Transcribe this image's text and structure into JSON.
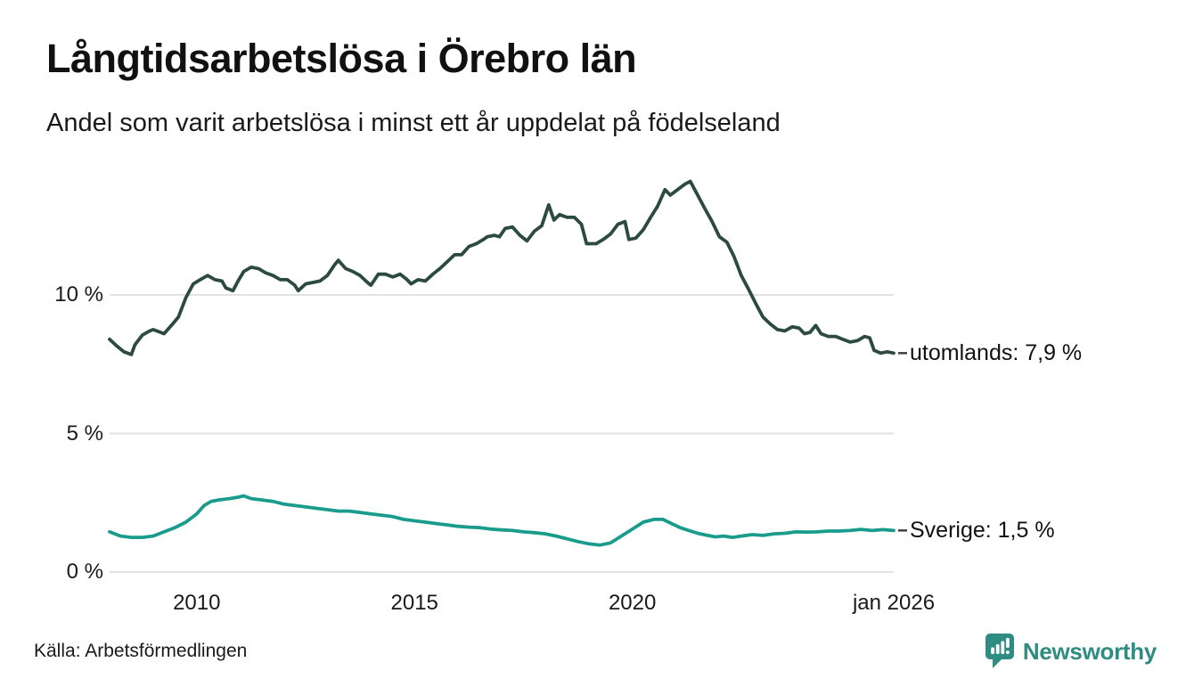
{
  "header": {
    "title": "Långtidsarbetslösa i Örebro län",
    "subtitle": "Andel som varit arbetslösa i minst ett år uppdelat på födelseland"
  },
  "footer": {
    "source": "Källa: Arbetsförmedlingen",
    "brand": "Newsworthy",
    "brand_icon": "newsworthy-speech-bubble-bar-chart-icon",
    "brand_color": "#2e8c82"
  },
  "chart_data": {
    "type": "line",
    "title": "Långtidsarbetslösa i Örebro län",
    "subtitle": "Andel som varit arbetslösa i minst ett år uppdelat på födelseland",
    "unit": "%",
    "x_range": [
      2008,
      2026
    ],
    "y_range": [
      0,
      15.2
    ],
    "grid": "horizontal-only",
    "legend_position": "end-of-line-labels",
    "yticks": [
      {
        "value": 0,
        "label": "0 %"
      },
      {
        "value": 5,
        "label": "5 %"
      },
      {
        "value": 10,
        "label": "10 %"
      }
    ],
    "xticks": [
      {
        "value": 2010,
        "label": "2010"
      },
      {
        "value": 2015,
        "label": "2015"
      },
      {
        "value": 2020,
        "label": "2020"
      },
      {
        "value": 2026,
        "label": "jan 2026"
      }
    ],
    "series": [
      {
        "name": "utomlands",
        "label": "utomlands: 7,9 %",
        "last_value_label": "7,9 %",
        "last_value": 7.9,
        "color": "#2c4a41",
        "points": [
          [
            2008.0,
            8.4
          ],
          [
            2008.17,
            8.15
          ],
          [
            2008.33,
            7.95
          ],
          [
            2008.5,
            7.85
          ],
          [
            2008.58,
            8.2
          ],
          [
            2008.75,
            8.55
          ],
          [
            2008.92,
            8.7
          ],
          [
            2009.0,
            8.75
          ],
          [
            2009.17,
            8.65
          ],
          [
            2009.25,
            8.6
          ],
          [
            2009.42,
            8.9
          ],
          [
            2009.58,
            9.2
          ],
          [
            2009.75,
            9.9
          ],
          [
            2009.92,
            10.4
          ],
          [
            2010.08,
            10.55
          ],
          [
            2010.25,
            10.7
          ],
          [
            2010.42,
            10.55
          ],
          [
            2010.58,
            10.5
          ],
          [
            2010.67,
            10.25
          ],
          [
            2010.83,
            10.15
          ],
          [
            2010.95,
            10.5
          ],
          [
            2011.08,
            10.85
          ],
          [
            2011.25,
            11.0
          ],
          [
            2011.42,
            10.95
          ],
          [
            2011.58,
            10.8
          ],
          [
            2011.75,
            10.7
          ],
          [
            2011.92,
            10.55
          ],
          [
            2012.08,
            10.55
          ],
          [
            2012.25,
            10.35
          ],
          [
            2012.33,
            10.15
          ],
          [
            2012.5,
            10.4
          ],
          [
            2012.67,
            10.45
          ],
          [
            2012.83,
            10.5
          ],
          [
            2013.0,
            10.7
          ],
          [
            2013.17,
            11.1
          ],
          [
            2013.25,
            11.25
          ],
          [
            2013.42,
            10.95
          ],
          [
            2013.58,
            10.85
          ],
          [
            2013.75,
            10.7
          ],
          [
            2013.92,
            10.45
          ],
          [
            2014.0,
            10.35
          ],
          [
            2014.17,
            10.75
          ],
          [
            2014.33,
            10.75
          ],
          [
            2014.5,
            10.65
          ],
          [
            2014.67,
            10.75
          ],
          [
            2014.83,
            10.55
          ],
          [
            2014.92,
            10.4
          ],
          [
            2015.08,
            10.55
          ],
          [
            2015.25,
            10.5
          ],
          [
            2015.42,
            10.75
          ],
          [
            2015.58,
            10.95
          ],
          [
            2015.75,
            11.2
          ],
          [
            2015.92,
            11.45
          ],
          [
            2016.08,
            11.45
          ],
          [
            2016.25,
            11.75
          ],
          [
            2016.42,
            11.85
          ],
          [
            2016.58,
            12.0
          ],
          [
            2016.67,
            12.1
          ],
          [
            2016.83,
            12.15
          ],
          [
            2016.95,
            12.1
          ],
          [
            2017.08,
            12.4
          ],
          [
            2017.25,
            12.45
          ],
          [
            2017.42,
            12.15
          ],
          [
            2017.58,
            11.95
          ],
          [
            2017.75,
            12.3
          ],
          [
            2017.92,
            12.5
          ],
          [
            2018.08,
            13.25
          ],
          [
            2018.2,
            12.7
          ],
          [
            2018.33,
            12.9
          ],
          [
            2018.5,
            12.8
          ],
          [
            2018.67,
            12.8
          ],
          [
            2018.83,
            12.55
          ],
          [
            2018.95,
            11.85
          ],
          [
            2019.17,
            11.85
          ],
          [
            2019.33,
            12.0
          ],
          [
            2019.5,
            12.2
          ],
          [
            2019.67,
            12.55
          ],
          [
            2019.83,
            12.65
          ],
          [
            2019.92,
            12.0
          ],
          [
            2020.08,
            12.05
          ],
          [
            2020.25,
            12.35
          ],
          [
            2020.42,
            12.8
          ],
          [
            2020.58,
            13.2
          ],
          [
            2020.75,
            13.8
          ],
          [
            2020.87,
            13.6
          ],
          [
            2021.04,
            13.8
          ],
          [
            2021.21,
            14.0
          ],
          [
            2021.33,
            14.1
          ],
          [
            2021.5,
            13.6
          ],
          [
            2021.67,
            13.1
          ],
          [
            2021.83,
            12.65
          ],
          [
            2022.0,
            12.1
          ],
          [
            2022.17,
            11.9
          ],
          [
            2022.33,
            11.4
          ],
          [
            2022.5,
            10.7
          ],
          [
            2022.67,
            10.2
          ],
          [
            2022.83,
            9.7
          ],
          [
            2023.0,
            9.2
          ],
          [
            2023.17,
            8.95
          ],
          [
            2023.33,
            8.75
          ],
          [
            2023.5,
            8.7
          ],
          [
            2023.67,
            8.85
          ],
          [
            2023.83,
            8.8
          ],
          [
            2023.95,
            8.6
          ],
          [
            2024.08,
            8.65
          ],
          [
            2024.21,
            8.9
          ],
          [
            2024.33,
            8.6
          ],
          [
            2024.5,
            8.5
          ],
          [
            2024.67,
            8.5
          ],
          [
            2024.83,
            8.4
          ],
          [
            2025.0,
            8.3
          ],
          [
            2025.17,
            8.35
          ],
          [
            2025.33,
            8.5
          ],
          [
            2025.45,
            8.45
          ],
          [
            2025.55,
            8.0
          ],
          [
            2025.7,
            7.9
          ],
          [
            2025.85,
            7.95
          ],
          [
            2026.0,
            7.9
          ]
        ]
      },
      {
        "name": "Sverige",
        "label": "Sverige: 1,5 %",
        "last_value_label": "1,5 %",
        "last_value": 1.5,
        "color": "#1a9c8c",
        "points": [
          [
            2008.0,
            1.45
          ],
          [
            2008.25,
            1.3
          ],
          [
            2008.5,
            1.25
          ],
          [
            2008.75,
            1.25
          ],
          [
            2009.0,
            1.3
          ],
          [
            2009.25,
            1.45
          ],
          [
            2009.5,
            1.6
          ],
          [
            2009.75,
            1.8
          ],
          [
            2010.0,
            2.1
          ],
          [
            2010.17,
            2.4
          ],
          [
            2010.33,
            2.55
          ],
          [
            2010.5,
            2.6
          ],
          [
            2010.75,
            2.65
          ],
          [
            2010.95,
            2.7
          ],
          [
            2011.08,
            2.75
          ],
          [
            2011.25,
            2.65
          ],
          [
            2011.5,
            2.6
          ],
          [
            2011.75,
            2.55
          ],
          [
            2012.0,
            2.45
          ],
          [
            2012.25,
            2.4
          ],
          [
            2012.5,
            2.35
          ],
          [
            2012.75,
            2.3
          ],
          [
            2013.0,
            2.25
          ],
          [
            2013.25,
            2.2
          ],
          [
            2013.5,
            2.2
          ],
          [
            2013.75,
            2.15
          ],
          [
            2014.0,
            2.1
          ],
          [
            2014.25,
            2.05
          ],
          [
            2014.5,
            2.0
          ],
          [
            2014.75,
            1.9
          ],
          [
            2015.0,
            1.85
          ],
          [
            2015.25,
            1.8
          ],
          [
            2015.5,
            1.75
          ],
          [
            2015.75,
            1.7
          ],
          [
            2016.0,
            1.65
          ],
          [
            2016.25,
            1.62
          ],
          [
            2016.5,
            1.6
          ],
          [
            2016.75,
            1.55
          ],
          [
            2017.0,
            1.52
          ],
          [
            2017.25,
            1.5
          ],
          [
            2017.5,
            1.45
          ],
          [
            2017.75,
            1.42
          ],
          [
            2018.0,
            1.38
          ],
          [
            2018.25,
            1.3
          ],
          [
            2018.5,
            1.2
          ],
          [
            2018.75,
            1.1
          ],
          [
            2019.0,
            1.02
          ],
          [
            2019.25,
            0.97
          ],
          [
            2019.5,
            1.05
          ],
          [
            2019.75,
            1.3
          ],
          [
            2020.0,
            1.55
          ],
          [
            2020.25,
            1.8
          ],
          [
            2020.5,
            1.9
          ],
          [
            2020.7,
            1.9
          ],
          [
            2020.9,
            1.75
          ],
          [
            2021.1,
            1.6
          ],
          [
            2021.3,
            1.5
          ],
          [
            2021.5,
            1.4
          ],
          [
            2021.7,
            1.33
          ],
          [
            2021.9,
            1.27
          ],
          [
            2022.1,
            1.3
          ],
          [
            2022.3,
            1.25
          ],
          [
            2022.5,
            1.3
          ],
          [
            2022.75,
            1.35
          ],
          [
            2023.0,
            1.32
          ],
          [
            2023.25,
            1.38
          ],
          [
            2023.5,
            1.4
          ],
          [
            2023.75,
            1.45
          ],
          [
            2024.0,
            1.44
          ],
          [
            2024.25,
            1.45
          ],
          [
            2024.5,
            1.48
          ],
          [
            2024.75,
            1.48
          ],
          [
            2025.0,
            1.5
          ],
          [
            2025.25,
            1.54
          ],
          [
            2025.5,
            1.5
          ],
          [
            2025.75,
            1.53
          ],
          [
            2026.0,
            1.5
          ]
        ]
      }
    ]
  }
}
